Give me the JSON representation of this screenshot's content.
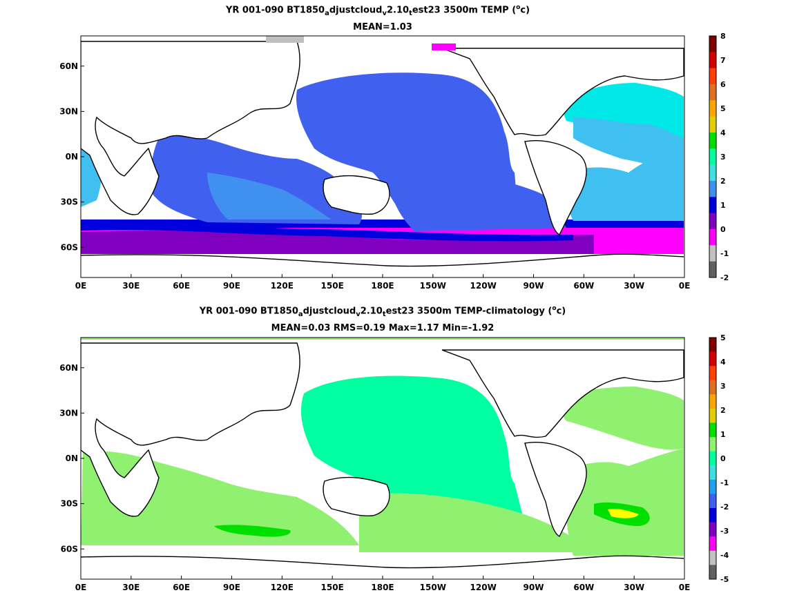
{
  "panels": [
    {
      "id": "top",
      "title_parts": {
        "a": "YR 001-090 BT1850",
        "sub1": "a",
        "b": "djustcloud",
        "sub2": "v",
        "c": "2.10",
        "sub3": "t",
        "d": "est23 3500m TEMP (",
        "sup": "o",
        "e": "c)"
      },
      "subtitle": "MEAN=1.03",
      "colorbar": {
        "ticks": [
          "8",
          "7",
          "6",
          "5",
          "4",
          "3",
          "2",
          "1",
          "0",
          "-1",
          "-2"
        ],
        "colors": [
          "#800000",
          "#d40000",
          "#ff4000",
          "#e07020",
          "#ffa500",
          "#e0d000",
          "#00e000",
          "#00ffa0",
          "#40e0e0",
          "#4090f0",
          "#0000dd",
          "#8000c0",
          "#ff00ff",
          "#c0c0c0",
          "#606060"
        ]
      }
    },
    {
      "id": "bottom",
      "title_parts": {
        "a": "YR 001-090 BT1850",
        "sub1": "a",
        "b": "djustcloud",
        "sub2": "v",
        "c": "2.10",
        "sub3": "t",
        "d": "est23 3500m TEMP-climatology (",
        "sup": "o",
        "e": "c)"
      },
      "subtitle": "MEAN=0.03   RMS=0.19   Max=1.17   Min=-1.92",
      "colorbar": {
        "ticks": [
          "5",
          "4",
          "3",
          "2",
          "1",
          "0",
          "-1",
          "-2",
          "-3",
          "-4",
          "-5"
        ],
        "colors": [
          "#800000",
          "#d40000",
          "#ff4000",
          "#e07020",
          "#ffa500",
          "#e0d000",
          "#00e000",
          "#90f070",
          "#00ffa0",
          "#40e0e0",
          "#20a0f0",
          "#4060f0",
          "#0000dd",
          "#8000c0",
          "#ff00ff",
          "#c0c0c0",
          "#606060"
        ]
      }
    }
  ],
  "axes": {
    "x_ticks": [
      "0E",
      "30E",
      "60E",
      "90E",
      "120E",
      "150E",
      "180E",
      "150W",
      "120W",
      "90W",
      "60W",
      "30W",
      "0E"
    ],
    "y_ticks": [
      "60N",
      "30N",
      "0N",
      "30S",
      "60S"
    ]
  }
}
